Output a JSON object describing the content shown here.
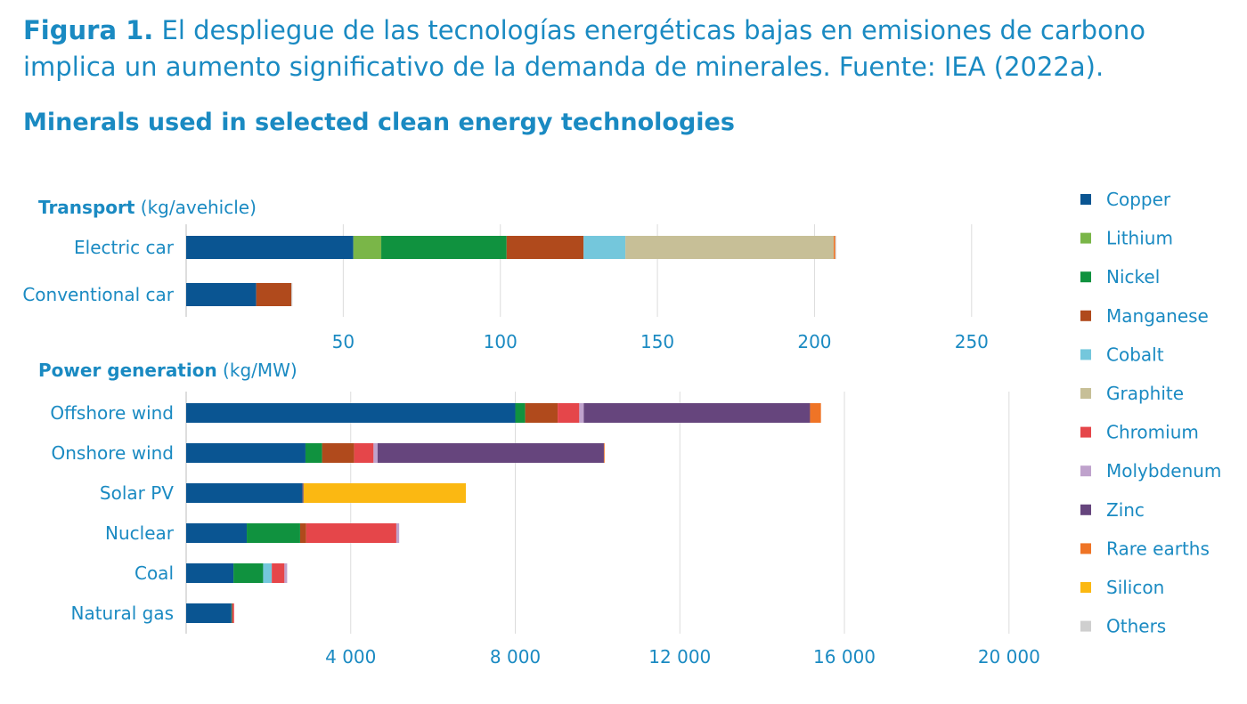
{
  "caption": {
    "label": "Figura 1.",
    "text": "El despliegue de las tecnologías energéticas bajas en emisiones de carbono implica un aumento significativo de la demanda de minerales. Fuente: IEA (2022a)."
  },
  "chart_data": {
    "type": "bar",
    "title": "Minerals used in selected clean energy technologies",
    "minerals": [
      "Copper",
      "Lithium",
      "Nickel",
      "Manganese",
      "Cobalt",
      "Graphite",
      "Chromium",
      "Molybdenum",
      "Zinc",
      "Rare earths",
      "Silicon",
      "Others"
    ],
    "colors": {
      "Copper": "#0a5592",
      "Lithium": "#7ab648",
      "Nickel": "#10923f",
      "Manganese": "#b04a1c",
      "Cobalt": "#74c7dc",
      "Graphite": "#c7bf97",
      "Chromium": "#e5464a",
      "Molybdenum": "#bfa2cc",
      "Zinc": "#66457d",
      "Rare earths": "#ef7426",
      "Silicon": "#fbb812",
      "Others": "#cfcfcf"
    },
    "panels": [
      {
        "title": "Transport",
        "unit": "(kg/avehicle)",
        "xlim": [
          0,
          275
        ],
        "ticks": [
          50,
          100,
          150,
          200,
          250
        ],
        "tick_labels": [
          "50",
          "100",
          "150",
          "200",
          "250"
        ],
        "categories": [
          "Electric car",
          "Conventional car"
        ],
        "series": [
          {
            "name": "Copper",
            "values": [
              53.2,
              22.3
            ]
          },
          {
            "name": "Lithium",
            "values": [
              8.9,
              0
            ]
          },
          {
            "name": "Nickel",
            "values": [
              39.9,
              0
            ]
          },
          {
            "name": "Manganese",
            "values": [
              24.5,
              11.2
            ]
          },
          {
            "name": "Cobalt",
            "values": [
              13.3,
              0
            ]
          },
          {
            "name": "Graphite",
            "values": [
              66.3,
              0
            ]
          },
          {
            "name": "Chromium",
            "values": [
              0,
              0
            ]
          },
          {
            "name": "Molybdenum",
            "values": [
              0,
              0
            ]
          },
          {
            "name": "Zinc",
            "values": [
              0,
              0
            ]
          },
          {
            "name": "Rare earths",
            "values": [
              0.5,
              0
            ]
          },
          {
            "name": "Silicon",
            "values": [
              0,
              0
            ]
          },
          {
            "name": "Others",
            "values": [
              0.3,
              0.3
            ]
          }
        ]
      },
      {
        "title": "Power generation",
        "unit": "(kg/MW)",
        "xlim": [
          0,
          21000
        ],
        "ticks": [
          4000,
          8000,
          12000,
          16000,
          20000
        ],
        "tick_labels": [
          "4 000",
          "8 000",
          "12 000",
          "16 000",
          "20 000"
        ],
        "categories": [
          "Offshore wind",
          "Onshore wind",
          "Solar PV",
          "Nuclear",
          "Coal",
          "Natural gas"
        ],
        "series": [
          {
            "name": "Copper",
            "values": [
              8000,
              2900,
              2822,
              1473,
              1150,
              1100
            ]
          },
          {
            "name": "Lithium",
            "values": [
              0,
              0,
              0,
              0,
              0,
              0
            ]
          },
          {
            "name": "Nickel",
            "values": [
              240,
              404,
              1,
              1297,
              721,
              16
            ]
          },
          {
            "name": "Manganese",
            "values": [
              790,
              780,
              0,
              148,
              0,
              0
            ]
          },
          {
            "name": "Cobalt",
            "values": [
              0,
              0,
              0,
              0,
              210,
              0
            ]
          },
          {
            "name": "Graphite",
            "values": [
              0,
              0,
              0,
              0,
              0,
              0
            ]
          },
          {
            "name": "Chromium",
            "values": [
              525,
              470,
              0,
              2190,
              308,
              48
            ]
          },
          {
            "name": "Molybdenum",
            "values": [
              109,
              99,
              0,
              70,
              66,
              0
            ]
          },
          {
            "name": "Zinc",
            "values": [
              5500,
              5500,
              30,
              0,
              0,
              0
            ]
          },
          {
            "name": "Rare earths",
            "values": [
              265,
              14,
              0,
              0,
              0,
              0
            ]
          },
          {
            "name": "Silicon",
            "values": [
              0,
              0,
              3946,
              0,
              0,
              0
            ]
          },
          {
            "name": "Others",
            "values": [
              0,
              0,
              0,
              0,
              0,
              0
            ]
          }
        ]
      }
    ]
  }
}
